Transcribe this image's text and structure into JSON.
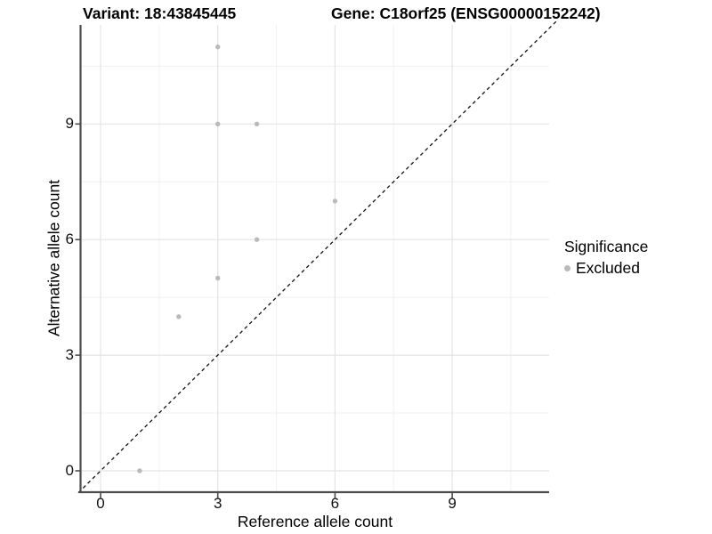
{
  "figure": {
    "title_left": "Variant: 18:43845445",
    "title_right": "Gene: C18orf25 (ENSG00000152242)"
  },
  "axes": {
    "x": {
      "label": "Reference allele count",
      "tick_labels": [
        "0",
        "3",
        "6",
        "9"
      ]
    },
    "y": {
      "label": "Alternative allele count",
      "tick_labels": [
        "0",
        "3",
        "6",
        "9"
      ]
    }
  },
  "legend": {
    "title": "Significance",
    "items": [
      {
        "label": "Excluded",
        "marker_color": "#bababa"
      }
    ]
  },
  "chart_data": {
    "type": "scatter",
    "title": "Variant: 18:43845445 | Gene: C18orf25 (ENSG00000152242)",
    "xlabel": "Reference allele count",
    "ylabel": "Alternative allele count",
    "xlim": [
      -0.55,
      11.55
    ],
    "ylim": [
      -0.55,
      11.55
    ],
    "x_ticks": [
      0,
      3,
      6,
      9
    ],
    "y_ticks": [
      0,
      3,
      6,
      9
    ],
    "minor_gridlines": [
      1.5,
      4.5,
      7.5,
      10.5
    ],
    "grid": true,
    "legend_position": "right",
    "series": [
      {
        "name": "Excluded",
        "color": "#bababa",
        "points": [
          [
            1,
            0
          ],
          [
            2,
            4
          ],
          [
            3,
            5
          ],
          [
            3,
            9
          ],
          [
            3,
            11
          ],
          [
            4,
            6
          ],
          [
            4,
            9
          ],
          [
            6,
            7
          ]
        ]
      }
    ],
    "identity_line": {
      "style": "dashed",
      "color": "#111111",
      "from": -0.57,
      "to": 11.72
    }
  },
  "colors": {
    "background": "#ffffff",
    "grid_major": "#e4e4e4",
    "grid_minor": "#f0f0f0",
    "axis_line": "#4d4d4d",
    "tick_text": "#111111",
    "point": "#bababa",
    "dashed_line": "#111111"
  }
}
